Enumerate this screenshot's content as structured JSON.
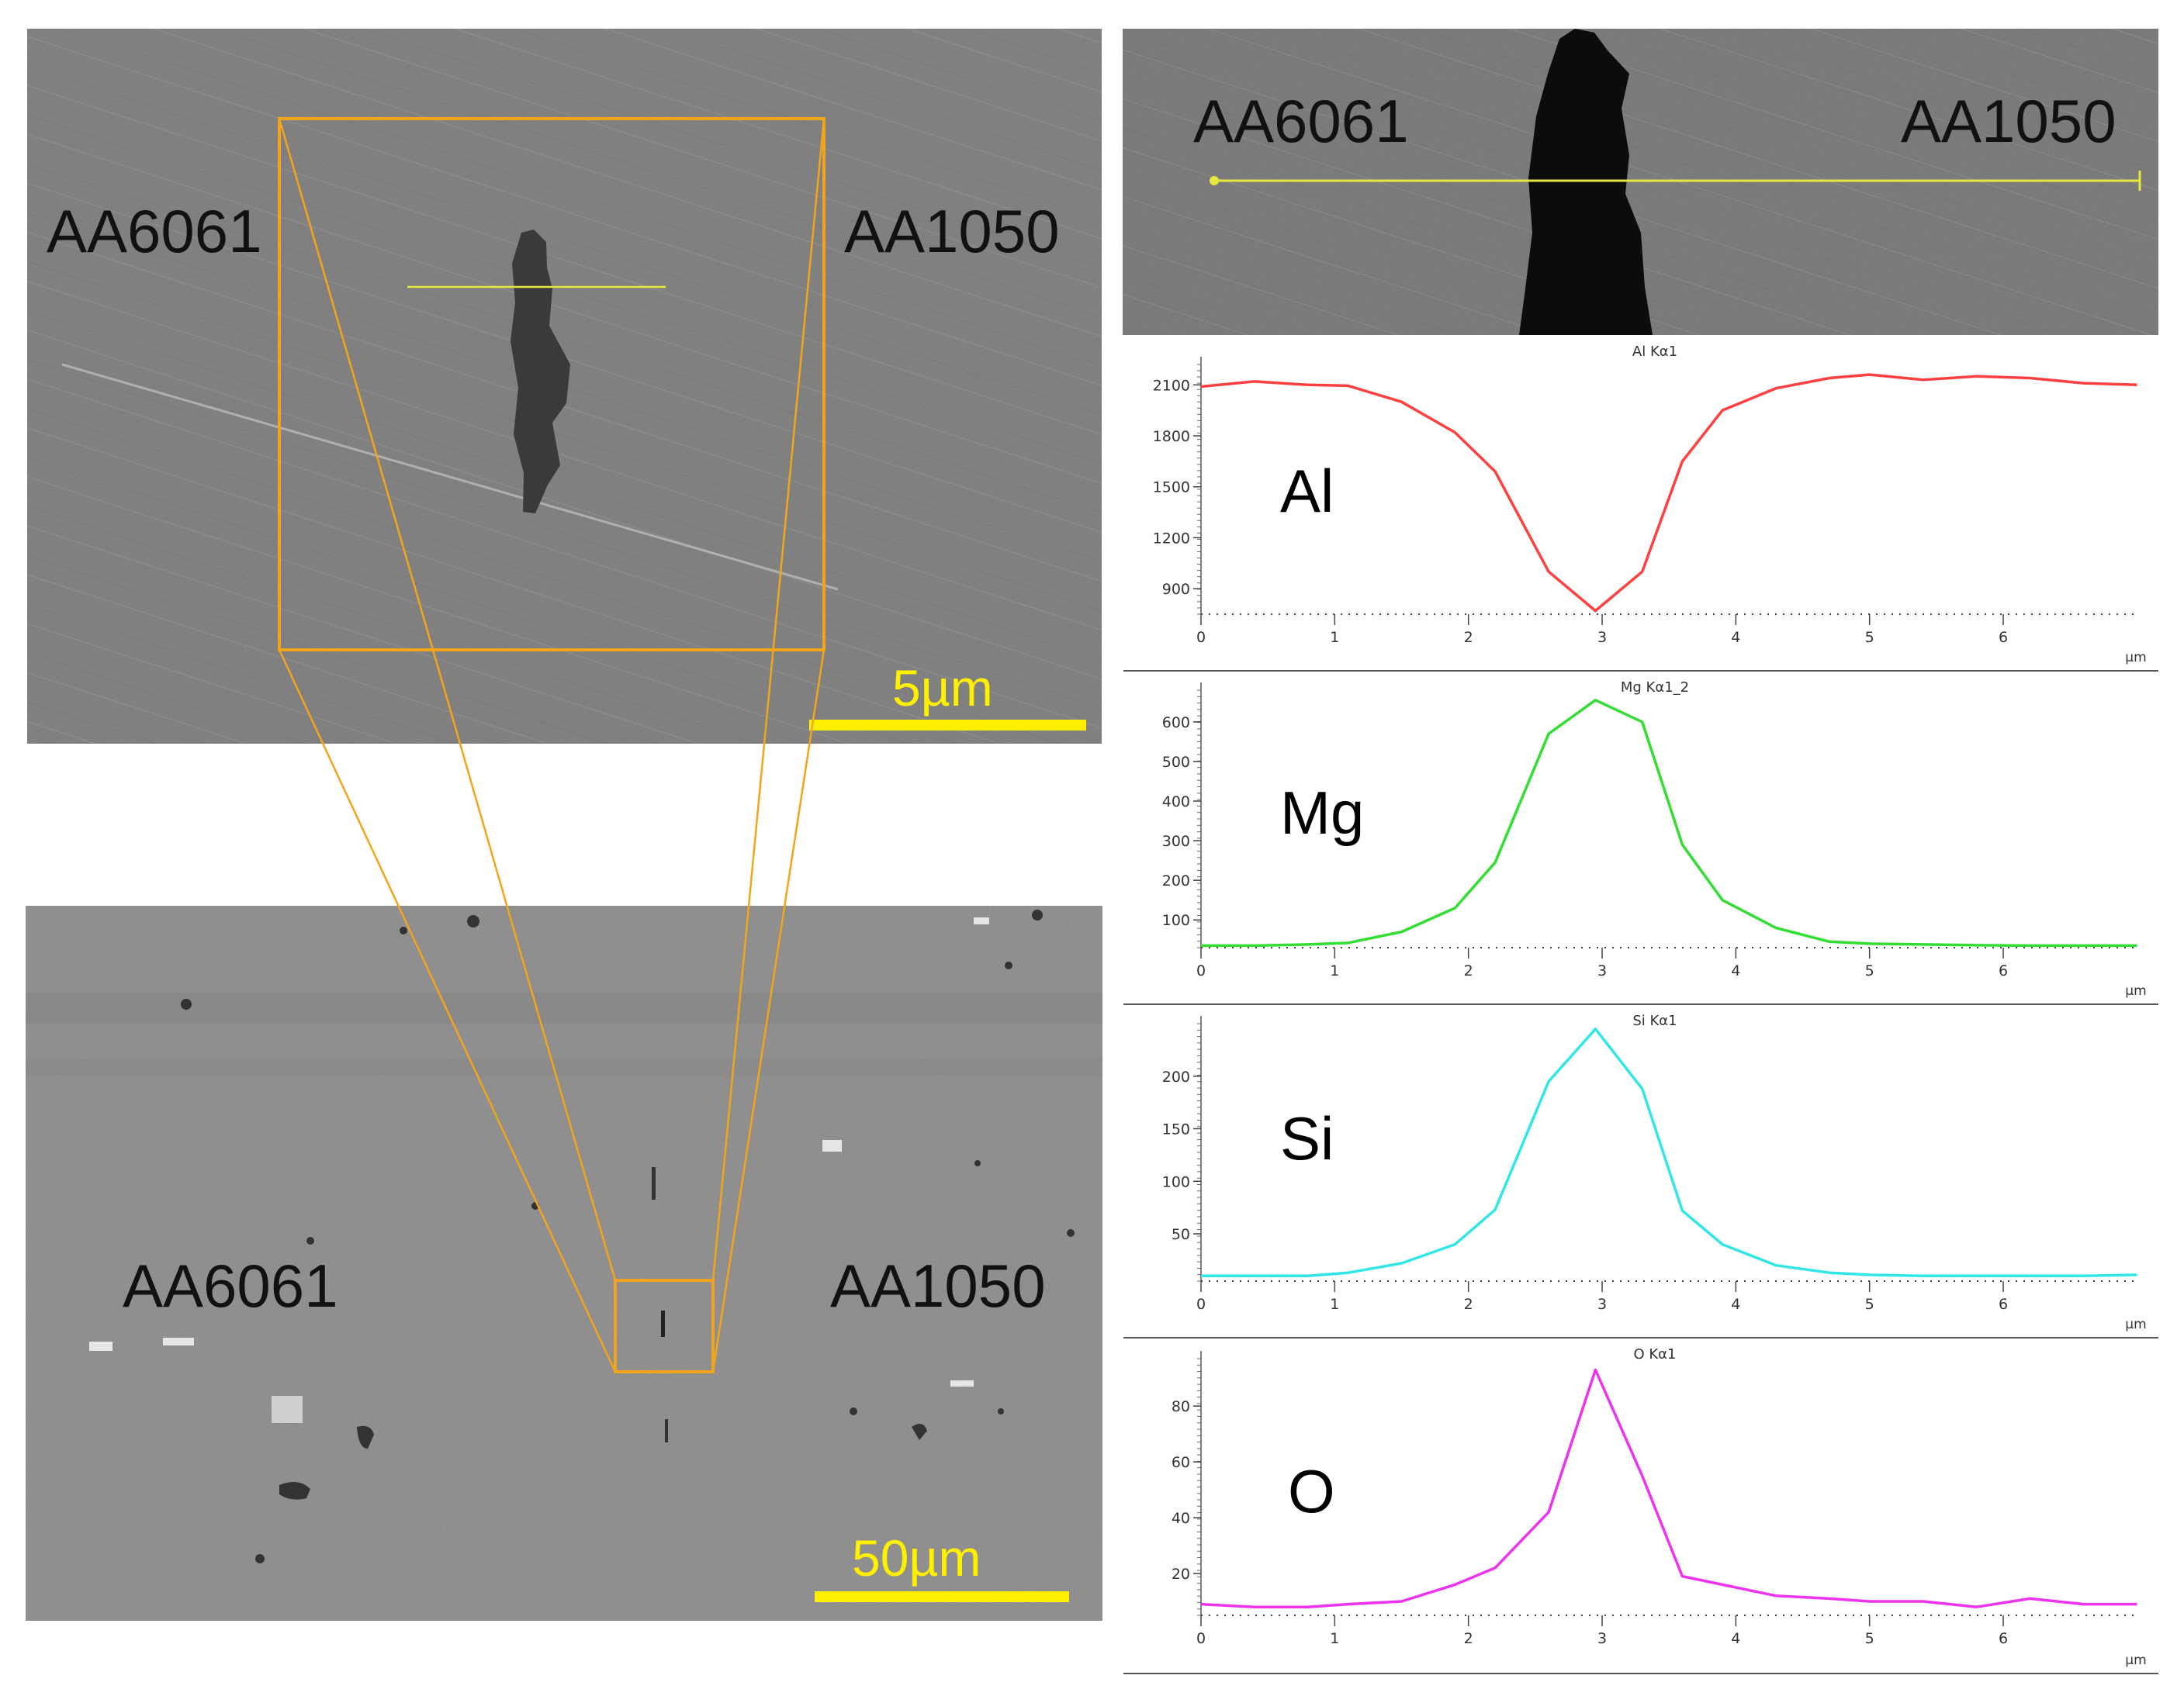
{
  "figure": {
    "top_sem": {
      "left_label": "AA6061",
      "right_label": "AA1050",
      "scale_bar": "5µm"
    },
    "bottom_sem": {
      "left_label": "AA6061",
      "right_label": "AA1050",
      "scale_bar": "50µm"
    },
    "linescan_sem": {
      "left_label": "AA6061",
      "right_label": "AA1050"
    },
    "colors": {
      "zoom_box": "#f2a51a",
      "scale_bar": "#ffef00",
      "scan_line": "#e8e83c"
    }
  },
  "chart_data": [
    {
      "type": "line",
      "title": "Al Kα1",
      "element_label": "Al",
      "xlabel": "µm",
      "color": "#ff4040",
      "xlim": [
        0,
        7
      ],
      "ylim": [
        750,
        2220
      ],
      "xticks": [
        0,
        1,
        2,
        3,
        4,
        5,
        6
      ],
      "yticks": [
        900,
        1200,
        1500,
        1800,
        2100
      ],
      "x": [
        0,
        0.4,
        0.8,
        1.1,
        1.5,
        1.9,
        2.2,
        2.6,
        2.95,
        3.3,
        3.6,
        3.9,
        4.3,
        4.7,
        5.0,
        5.4,
        5.8,
        6.2,
        6.6,
        7.0
      ],
      "y": [
        2090,
        2120,
        2100,
        2095,
        2000,
        1820,
        1590,
        1000,
        770,
        1000,
        1650,
        1950,
        2080,
        2140,
        2160,
        2130,
        2150,
        2140,
        2110,
        2100
      ]
    },
    {
      "type": "line",
      "title": "Mg Kα1_2",
      "element_label": "Mg",
      "xlabel": "µm",
      "color": "#33dd33",
      "xlim": [
        0,
        7
      ],
      "ylim": [
        30,
        680
      ],
      "xticks": [
        0,
        1,
        2,
        3,
        4,
        5,
        6
      ],
      "yticks": [
        100,
        200,
        300,
        400,
        500,
        600
      ],
      "x": [
        0,
        0.4,
        0.8,
        1.1,
        1.5,
        1.9,
        2.2,
        2.6,
        2.95,
        3.3,
        3.6,
        3.9,
        4.3,
        4.7,
        5.0,
        5.4,
        5.8,
        6.2,
        6.6,
        7.0
      ],
      "y": [
        35,
        35,
        38,
        42,
        70,
        130,
        245,
        570,
        655,
        600,
        290,
        150,
        80,
        45,
        40,
        38,
        36,
        35,
        35,
        35
      ]
    },
    {
      "type": "line",
      "title": "Si Kα1",
      "element_label": "Si",
      "xlabel": "µm",
      "color": "#33e6e6",
      "xlim": [
        0,
        7
      ],
      "ylim": [
        5,
        250
      ],
      "xticks": [
        0,
        1,
        2,
        3,
        4,
        5,
        6
      ],
      "yticks": [
        50,
        100,
        150,
        200
      ],
      "x": [
        0,
        0.4,
        0.8,
        1.1,
        1.5,
        1.9,
        2.2,
        2.6,
        2.95,
        3.3,
        3.6,
        3.9,
        4.3,
        4.7,
        5.0,
        5.4,
        5.8,
        6.2,
        6.6,
        7.0
      ],
      "y": [
        10,
        10,
        10,
        13,
        22,
        40,
        73,
        195,
        245,
        188,
        72,
        40,
        20,
        13,
        11,
        10,
        10,
        10,
        10,
        11
      ]
    },
    {
      "type": "line",
      "title": "O Kα1",
      "element_label": "O",
      "xlabel": "µm",
      "color": "#ee33ee",
      "xlim": [
        0,
        7
      ],
      "ylim": [
        5,
        97
      ],
      "xticks": [
        0,
        1,
        2,
        3,
        4,
        5,
        6
      ],
      "yticks": [
        20,
        40,
        60,
        80
      ],
      "x": [
        0,
        0.4,
        0.8,
        1.1,
        1.5,
        1.9,
        2.2,
        2.6,
        2.95,
        3.3,
        3.6,
        3.9,
        4.3,
        4.7,
        5.0,
        5.4,
        5.8,
        6.2,
        6.6,
        7.0
      ],
      "y": [
        9,
        8,
        8,
        9,
        10,
        16,
        22,
        42,
        93,
        55,
        19,
        16,
        12,
        11,
        10,
        10,
        8,
        11,
        9,
        9
      ]
    }
  ]
}
